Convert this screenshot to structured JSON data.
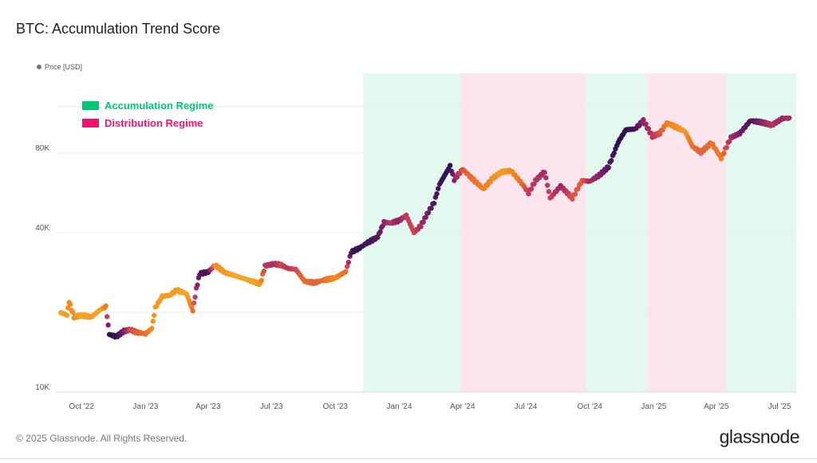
{
  "header": {
    "title": "BTC: Accumulation Trend Score"
  },
  "legend": {
    "price_label": "Price [USD]"
  },
  "footer": {
    "copyright": "© 2025 Glassnode. All Rights Reserved.",
    "brand": "glassnode"
  },
  "chart_data": {
    "type": "scatter",
    "title": "BTC: Accumulation Trend Score",
    "ylabel": "",
    "xlabel": "",
    "yscale": "log",
    "ylim": [
      10000,
      160000
    ],
    "xlim": [
      "2022-08-25",
      "2025-07-25"
    ],
    "y_ticks": [
      {
        "value": 10000,
        "label": "10K"
      },
      {
        "value": 40000,
        "label": "40K"
      },
      {
        "value": 80000,
        "label": "80K"
      }
    ],
    "x_ticks": [
      {
        "date": "2022-10-01",
        "label": "Oct '22"
      },
      {
        "date": "2023-01-01",
        "label": "Jan '23"
      },
      {
        "date": "2023-04-01",
        "label": "Apr '23"
      },
      {
        "date": "2023-07-01",
        "label": "Jul '23"
      },
      {
        "date": "2023-10-01",
        "label": "Oct '23"
      },
      {
        "date": "2024-01-01",
        "label": "Jan '24"
      },
      {
        "date": "2024-04-01",
        "label": "Apr '24"
      },
      {
        "date": "2024-07-01",
        "label": "Jul '24"
      },
      {
        "date": "2024-10-01",
        "label": "Oct '24"
      },
      {
        "date": "2025-01-01",
        "label": "Jan '25"
      },
      {
        "date": "2025-04-01",
        "label": "Apr '25"
      },
      {
        "date": "2025-07-01",
        "label": "Jul '25"
      }
    ],
    "regimes": [
      {
        "name": "Accumulation Regime",
        "color": "#00c773",
        "start": "2023-11-10",
        "end": "2024-03-29"
      },
      {
        "name": "Distribution Regime",
        "color": "#f0146e",
        "start": "2024-03-29",
        "end": "2024-09-25"
      },
      {
        "name": "Accumulation Regime",
        "color": "#00c773",
        "start": "2024-09-25",
        "end": "2024-12-22"
      },
      {
        "name": "Distribution Regime",
        "color": "#f0146e",
        "start": "2024-12-22",
        "end": "2025-04-15"
      },
      {
        "name": "Accumulation Regime",
        "color": "#00c773",
        "start": "2025-04-15",
        "end": "2025-07-25"
      }
    ],
    "regime_legend": [
      {
        "label": "Accumulation Regime",
        "color": "#00c773"
      },
      {
        "label": "Distribution Regime",
        "color": "#f0146e"
      }
    ],
    "score_colors": {
      "low": "#f7c52a",
      "mid_low": "#f07d20",
      "mid": "#c53a5a",
      "mid_high": "#7a1c6e",
      "high": "#1c1046"
    },
    "series": [
      {
        "name": "Price [USD]",
        "points": [
          [
            "2022-09-01",
            20000,
            0.1
          ],
          [
            "2022-09-10",
            19500,
            0.15
          ],
          [
            "2022-09-13",
            22000,
            0.2
          ],
          [
            "2022-09-20",
            19200,
            0.2
          ],
          [
            "2022-10-01",
            19500,
            0.1
          ],
          [
            "2022-10-15",
            19200,
            0.15
          ],
          [
            "2022-10-28",
            20500,
            0.1
          ],
          [
            "2022-11-05",
            21000,
            0.25
          ],
          [
            "2022-11-10",
            16500,
            0.95
          ],
          [
            "2022-11-20",
            16200,
            0.95
          ],
          [
            "2022-12-01",
            17000,
            0.75
          ],
          [
            "2022-12-10",
            17200,
            0.45
          ],
          [
            "2022-12-20",
            16800,
            0.35
          ],
          [
            "2023-01-01",
            16600,
            0.3
          ],
          [
            "2023-01-10",
            17400,
            0.2
          ],
          [
            "2023-01-15",
            20800,
            0.15
          ],
          [
            "2023-01-25",
            23000,
            0.15
          ],
          [
            "2023-02-05",
            23200,
            0.15
          ],
          [
            "2023-02-15",
            24300,
            0.15
          ],
          [
            "2023-03-01",
            23500,
            0.1
          ],
          [
            "2023-03-10",
            20300,
            0.3
          ],
          [
            "2023-03-15",
            24500,
            0.6
          ],
          [
            "2023-03-20",
            28000,
            0.85
          ],
          [
            "2023-04-01",
            28400,
            0.9
          ],
          [
            "2023-04-11",
            30200,
            0.2
          ],
          [
            "2023-04-25",
            28300,
            0.15
          ],
          [
            "2023-05-10",
            27500,
            0.1
          ],
          [
            "2023-05-25",
            26700,
            0.1
          ],
          [
            "2023-06-15",
            25600,
            0.15
          ],
          [
            "2023-06-22",
            30000,
            0.5
          ],
          [
            "2023-07-05",
            30500,
            0.6
          ],
          [
            "2023-07-15",
            30200,
            0.45
          ],
          [
            "2023-07-25",
            29300,
            0.55
          ],
          [
            "2023-08-05",
            29100,
            0.45
          ],
          [
            "2023-08-18",
            26200,
            0.3
          ],
          [
            "2023-09-01",
            25900,
            0.35
          ],
          [
            "2023-09-15",
            26500,
            0.3
          ],
          [
            "2023-10-01",
            27000,
            0.2
          ],
          [
            "2023-10-16",
            28500,
            0.3
          ],
          [
            "2023-10-24",
            33800,
            0.9
          ],
          [
            "2023-11-05",
            35000,
            0.95
          ],
          [
            "2023-11-15",
            36500,
            0.9
          ],
          [
            "2023-12-01",
            38500,
            0.85
          ],
          [
            "2023-12-10",
            43800,
            0.7
          ],
          [
            "2023-12-20",
            43500,
            0.55
          ],
          [
            "2024-01-01",
            44500,
            0.7
          ],
          [
            "2024-01-11",
            46500,
            0.5
          ],
          [
            "2024-01-22",
            40000,
            0.45
          ],
          [
            "2024-02-01",
            42500,
            0.6
          ],
          [
            "2024-02-10",
            47000,
            0.75
          ],
          [
            "2024-02-20",
            52000,
            0.85
          ],
          [
            "2024-02-28",
            61000,
            0.9
          ],
          [
            "2024-03-10",
            68500,
            0.95
          ],
          [
            "2024-03-14",
            71500,
            0.95
          ],
          [
            "2024-03-20",
            63500,
            0.7
          ],
          [
            "2024-04-01",
            69500,
            0.4
          ],
          [
            "2024-04-15",
            64000,
            0.3
          ],
          [
            "2024-05-01",
            58500,
            0.25
          ],
          [
            "2024-05-15",
            64500,
            0.2
          ],
          [
            "2024-05-28",
            68000,
            0.15
          ],
          [
            "2024-06-10",
            68500,
            0.2
          ],
          [
            "2024-06-25",
            61500,
            0.3
          ],
          [
            "2024-07-05",
            56500,
            0.5
          ],
          [
            "2024-07-15",
            63000,
            0.55
          ],
          [
            "2024-07-28",
            68000,
            0.6
          ],
          [
            "2024-08-05",
            54000,
            0.45
          ],
          [
            "2024-08-20",
            60000,
            0.65
          ],
          [
            "2024-09-06",
            54000,
            0.4
          ],
          [
            "2024-09-20",
            63000,
            0.35
          ],
          [
            "2024-10-01",
            62500,
            0.6
          ],
          [
            "2024-10-15",
            66000,
            0.7
          ],
          [
            "2024-10-28",
            71000,
            0.85
          ],
          [
            "2024-11-11",
            88000,
            0.95
          ],
          [
            "2024-11-22",
            98000,
            0.95
          ],
          [
            "2024-12-05",
            98500,
            0.9
          ],
          [
            "2024-12-17",
            106000,
            0.7
          ],
          [
            "2024-12-30",
            92500,
            0.55
          ],
          [
            "2025-01-10",
            95000,
            0.4
          ],
          [
            "2025-01-20",
            104000,
            0.25
          ],
          [
            "2025-02-01",
            100500,
            0.2
          ],
          [
            "2025-02-15",
            96500,
            0.15
          ],
          [
            "2025-02-26",
            84500,
            0.3
          ],
          [
            "2025-03-10",
            80500,
            0.35
          ],
          [
            "2025-03-25",
            87500,
            0.3
          ],
          [
            "2025-04-08",
            76500,
            0.25
          ],
          [
            "2025-04-22",
            91500,
            0.6
          ],
          [
            "2025-05-05",
            95000,
            0.75
          ],
          [
            "2025-05-20",
            106000,
            0.9
          ],
          [
            "2025-06-05",
            104500,
            0.7
          ],
          [
            "2025-06-20",
            102000,
            0.55
          ],
          [
            "2025-07-05",
            108000,
            0.65
          ],
          [
            "2025-07-15",
            108500,
            0.6
          ]
        ]
      }
    ]
  }
}
